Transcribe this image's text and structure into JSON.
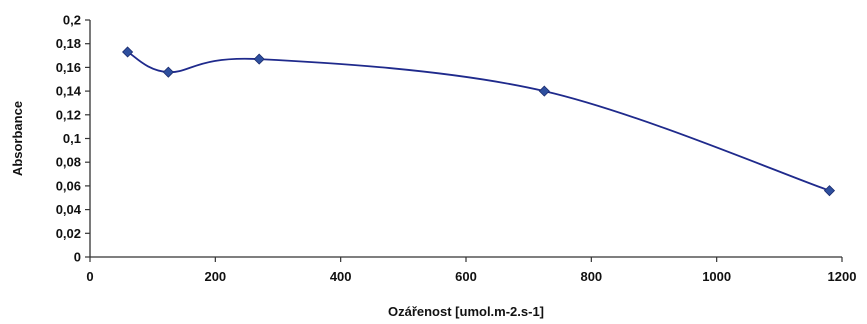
{
  "chart_data": {
    "type": "line",
    "title": "",
    "xlabel": "Ozářenost [umol.m-2.s-1]",
    "ylabel": "Absorbance",
    "xlim": [
      0,
      1200
    ],
    "ylim": [
      0,
      0.2
    ],
    "x_ticks": [
      "0",
      "200",
      "400",
      "600",
      "800",
      "1000",
      "1200"
    ],
    "y_ticks": [
      "0",
      "0,02",
      "0,04",
      "0,06",
      "0,08",
      "0,1",
      "0,12",
      "0,14",
      "0,16",
      "0,18",
      "0,2"
    ],
    "grid": false,
    "legend": "none",
    "line_color": "#1f2a8c",
    "marker": "diamond",
    "smooth": true,
    "series": [
      {
        "x": [
          60,
          125,
          270,
          725,
          1180
        ],
        "y": [
          0.173,
          0.156,
          0.167,
          0.14,
          0.056
        ]
      }
    ]
  }
}
